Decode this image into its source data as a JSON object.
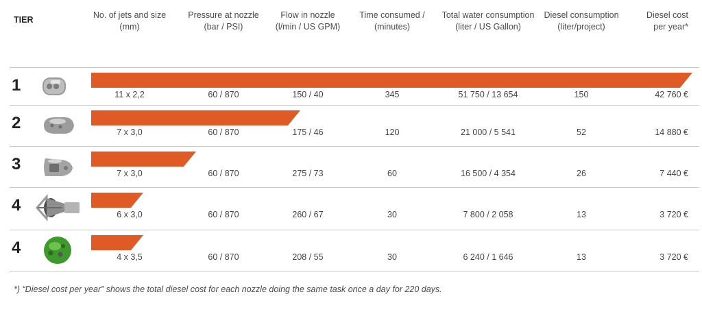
{
  "headers": {
    "tier": "TIER",
    "jets": [
      "No. of jets and size",
      "(mm)"
    ],
    "pressure": [
      "Pressure at nozzle",
      "(bar / PSI)"
    ],
    "flow": [
      "Flow in nozzle",
      "(l/min / US GPM)"
    ],
    "time": [
      "Time consumed /",
      "(minutes)"
    ],
    "water": [
      "Total water consumption",
      "(liter / US Gallon)"
    ],
    "diesel": [
      "Diesel consumption",
      "(liter/project)"
    ],
    "cost": [
      "Diesel cost",
      "per year*"
    ]
  },
  "colors": {
    "bar": "#e05a26",
    "separator": "#c8c8c8"
  },
  "rows": [
    {
      "tier": "1",
      "nozzle_icon": "grey-rounded-nozzle-icon",
      "bar_fraction": 1.0,
      "jets": "11 x 2,2",
      "pressure": "60 / 870",
      "flow": "150 / 40",
      "time": "345",
      "water": "51 750 / 13 654",
      "diesel": "150",
      "cost": "42 760 €"
    },
    {
      "tier": "2",
      "nozzle_icon": "grey-bullet-nozzle-icon",
      "bar_fraction": 0.348,
      "jets": "7 x 3,0",
      "pressure": "60 / 870",
      "flow": "175 / 46",
      "time": "120",
      "water": "21 000 /  5 541",
      "diesel": "52",
      "cost": "14 880  €"
    },
    {
      "tier": "3",
      "nozzle_icon": "grey-slotted-nozzle-icon",
      "bar_fraction": 0.174,
      "jets": "7 x 3,0",
      "pressure": "60 / 870",
      "flow": "275 / 73",
      "time": "60",
      "water": "16 500 / 4 354",
      "diesel": "26",
      "cost": "7 440 €"
    },
    {
      "tier": "4",
      "nozzle_icon": "caged-nozzle-icon",
      "bar_fraction": 0.087,
      "jets": "6 x 3,0",
      "pressure": "60 / 870",
      "flow": "260  / 67",
      "time": "30",
      "water": "7 800 / 2 058",
      "diesel": "13",
      "cost": "3 720 €"
    },
    {
      "tier": "4",
      "nozzle_icon": "green-nozzle-icon",
      "bar_fraction": 0.087,
      "jets": "4 x 3,5",
      "pressure": "60 / 870",
      "flow": "208 / 55",
      "time": "30",
      "water": "6 240 / 1 646",
      "diesel": "13",
      "cost": "3 720 €"
    }
  ],
  "footnote": "*) “Diesel cost per year” shows the total diesel cost for each nozzle doing the same task once a day for 220 days."
}
